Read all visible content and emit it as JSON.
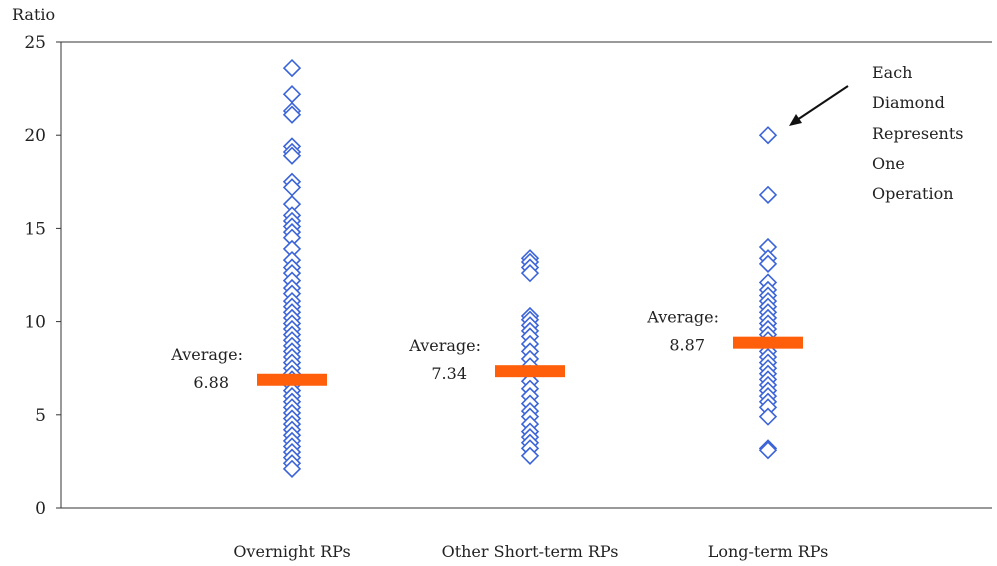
{
  "chart_data": {
    "type": "scatter",
    "title": "",
    "ylabel": "Ratio",
    "xlabel": "",
    "ylim": [
      0,
      25
    ],
    "yticks": [
      0,
      5,
      10,
      15,
      20,
      25
    ],
    "grid": false,
    "colors": {
      "marker": "#3b64d8",
      "average": "#ff5f0a"
    },
    "categories": [
      "Overnight RPs",
      "Other Short-term RPs",
      "Long-term RPs"
    ],
    "series": [
      {
        "category": "Overnight RPs",
        "average": 6.88,
        "average_label": "Average:",
        "average_value_label": "6.88",
        "values": [
          23.6,
          22.2,
          21.3,
          21.1,
          19.4,
          19.1,
          18.9,
          17.5,
          17.2,
          16.3,
          15.7,
          15.4,
          15.1,
          14.8,
          14.5,
          13.9,
          13.3,
          12.9,
          12.6,
          12.2,
          11.8,
          11.5,
          11.1,
          10.8,
          10.5,
          10.2,
          9.9,
          9.6,
          9.3,
          9.0,
          8.7,
          8.4,
          8.1,
          7.8,
          7.5,
          7.2,
          6.9,
          6.6,
          6.3,
          6.0,
          5.7,
          5.4,
          5.1,
          4.8,
          4.5,
          4.2,
          3.9,
          3.6,
          3.3,
          3.0,
          2.7,
          2.4,
          2.1
        ]
      },
      {
        "category": "Other Short-term RPs",
        "average": 7.34,
        "average_label": "Average:",
        "average_value_label": "7.34",
        "values": [
          13.4,
          13.2,
          12.9,
          12.6,
          10.3,
          10.1,
          9.8,
          9.5,
          9.2,
          8.8,
          8.4,
          8.0,
          7.6,
          7.2,
          6.8,
          6.4,
          6.0,
          5.6,
          5.2,
          4.9,
          4.5,
          4.1,
          3.8,
          3.5,
          3.2,
          2.8
        ]
      },
      {
        "category": "Long-term RPs",
        "average": 8.87,
        "average_label": "Average:",
        "average_value_label": "8.87",
        "values": [
          20.0,
          16.8,
          14.0,
          13.4,
          13.1,
          12.1,
          11.7,
          11.4,
          11.1,
          10.8,
          10.5,
          10.2,
          9.9,
          9.6,
          9.3,
          9.0,
          8.7,
          8.4,
          8.1,
          7.8,
          7.5,
          7.2,
          6.9,
          6.6,
          6.3,
          6.0,
          5.7,
          5.4,
          4.9,
          3.2,
          3.1
        ]
      }
    ],
    "annotation": {
      "lines": [
        "Each",
        "Diamond",
        "Represents",
        "One",
        "Operation"
      ]
    }
  }
}
